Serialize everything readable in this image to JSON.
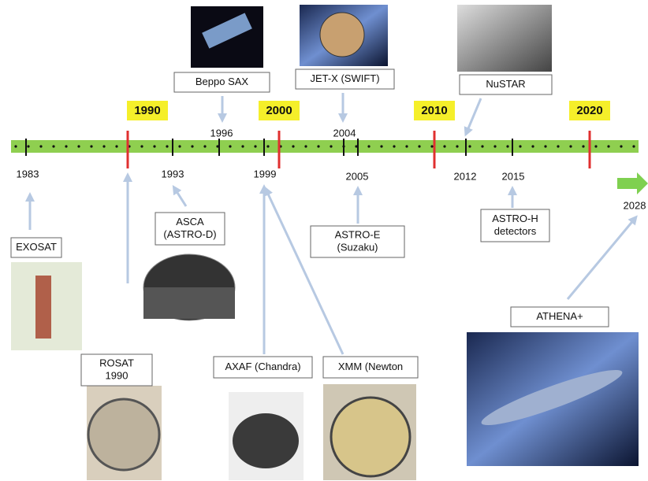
{
  "decades": [
    "1990",
    "2000",
    "2010",
    "2020"
  ],
  "years": [
    "1983",
    "1993",
    "1996",
    "1999",
    "2004",
    "2005",
    "2012",
    "2015",
    "2028"
  ],
  "missions": [
    {
      "lines": [
        "EXOSAT"
      ]
    },
    {
      "lines": [
        "ROSAT",
        "1990"
      ]
    },
    {
      "lines": [
        "ASCA",
        "(ASTRO-D)"
      ]
    },
    {
      "lines": [
        "Beppo SAX"
      ]
    },
    {
      "lines": [
        "AXAF (Chandra)"
      ]
    },
    {
      "lines": [
        "XMM (Newton"
      ]
    },
    {
      "lines": [
        "JET-X (SWIFT)"
      ]
    },
    {
      "lines": [
        "ASTRO-E",
        "(Suzaku)"
      ]
    },
    {
      "lines": [
        "NuSTAR"
      ]
    },
    {
      "lines": [
        "ASTRO-H",
        "detectors"
      ]
    },
    {
      "lines": [
        "ATHENA+"
      ]
    }
  ]
}
